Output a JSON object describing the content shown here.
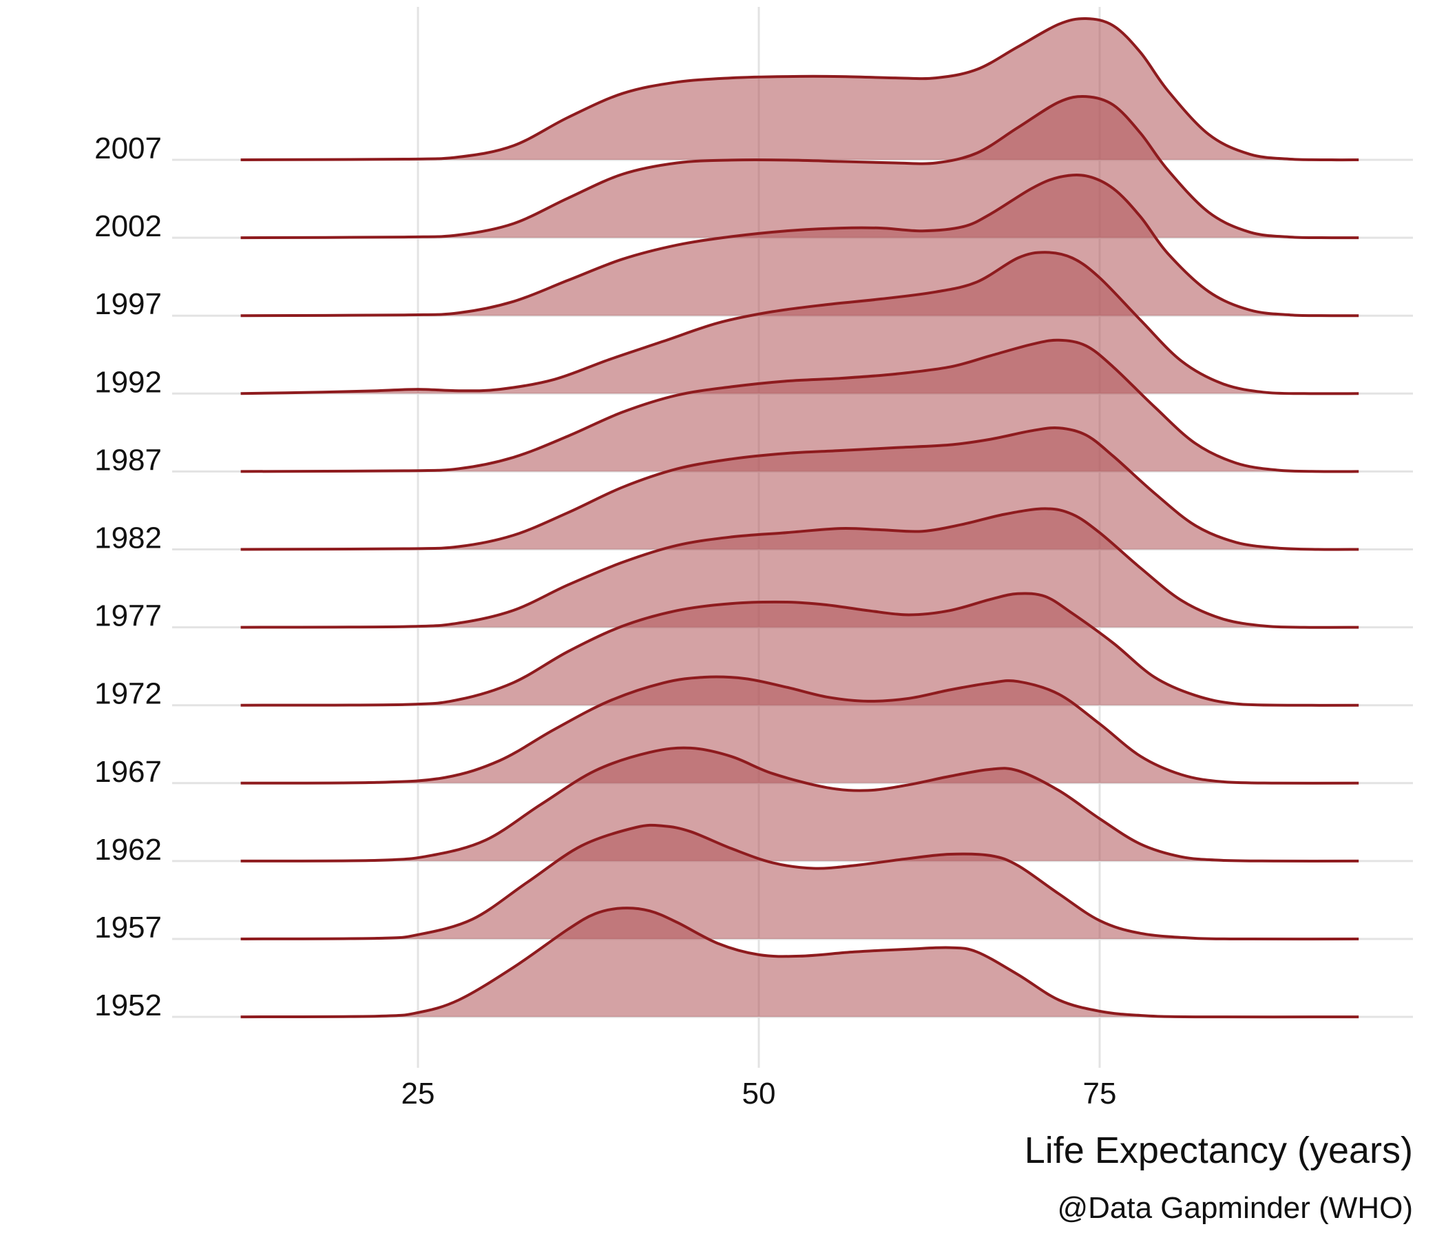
{
  "chart_data": {
    "type": "ridgeline",
    "xlabel": "Life Expectancy (years)",
    "caption": "@Data Gapminder (WHO)",
    "x_ticks": [
      25,
      50,
      75
    ],
    "xlim": [
      12,
      94
    ],
    "grid": true,
    "colors": {
      "fill": "#b15559",
      "line": "#8e1b1e",
      "grid": "#e3e3e3"
    },
    "density_scale": "relative height; 1.0 = tallest ridge",
    "series": [
      {
        "name": "1952",
        "points": [
          [
            12,
            0
          ],
          [
            22,
            0.005
          ],
          [
            25,
            0.03
          ],
          [
            28,
            0.12
          ],
          [
            32,
            0.35
          ],
          [
            36,
            0.62
          ],
          [
            38,
            0.73
          ],
          [
            40,
            0.77
          ],
          [
            42,
            0.75
          ],
          [
            44,
            0.67
          ],
          [
            47,
            0.52
          ],
          [
            50,
            0.44
          ],
          [
            53,
            0.43
          ],
          [
            57,
            0.46
          ],
          [
            61,
            0.48
          ],
          [
            64,
            0.49
          ],
          [
            66,
            0.46
          ],
          [
            69,
            0.3
          ],
          [
            72,
            0.12
          ],
          [
            75,
            0.04
          ],
          [
            78,
            0.01
          ],
          [
            82,
            0
          ],
          [
            94,
            0
          ]
        ]
      },
      {
        "name": "1957",
        "points": [
          [
            12,
            0
          ],
          [
            22,
            0.005
          ],
          [
            25,
            0.03
          ],
          [
            29,
            0.14
          ],
          [
            33,
            0.4
          ],
          [
            37,
            0.66
          ],
          [
            41,
            0.79
          ],
          [
            43,
            0.8
          ],
          [
            45,
            0.76
          ],
          [
            48,
            0.64
          ],
          [
            51,
            0.54
          ],
          [
            54,
            0.5
          ],
          [
            57,
            0.52
          ],
          [
            61,
            0.57
          ],
          [
            64,
            0.6
          ],
          [
            67,
            0.59
          ],
          [
            69,
            0.52
          ],
          [
            72,
            0.32
          ],
          [
            75,
            0.13
          ],
          [
            78,
            0.04
          ],
          [
            82,
            0.005
          ],
          [
            86,
            0
          ],
          [
            94,
            0
          ]
        ]
      },
      {
        "name": "1962",
        "points": [
          [
            12,
            0
          ],
          [
            22,
            0.005
          ],
          [
            26,
            0.04
          ],
          [
            30,
            0.15
          ],
          [
            34,
            0.4
          ],
          [
            38,
            0.64
          ],
          [
            42,
            0.77
          ],
          [
            45,
            0.8
          ],
          [
            48,
            0.74
          ],
          [
            51,
            0.62
          ],
          [
            55,
            0.52
          ],
          [
            58,
            0.5
          ],
          [
            61,
            0.54
          ],
          [
            64,
            0.6
          ],
          [
            67,
            0.65
          ],
          [
            69,
            0.64
          ],
          [
            72,
            0.5
          ],
          [
            75,
            0.3
          ],
          [
            78,
            0.12
          ],
          [
            81,
            0.03
          ],
          [
            84,
            0.005
          ],
          [
            88,
            0
          ],
          [
            94,
            0
          ]
        ]
      },
      {
        "name": "1967",
        "points": [
          [
            12,
            0
          ],
          [
            22,
            0.005
          ],
          [
            27,
            0.04
          ],
          [
            31,
            0.16
          ],
          [
            35,
            0.38
          ],
          [
            39,
            0.58
          ],
          [
            43,
            0.71
          ],
          [
            46,
            0.75
          ],
          [
            49,
            0.74
          ],
          [
            52,
            0.68
          ],
          [
            55,
            0.61
          ],
          [
            58,
            0.58
          ],
          [
            61,
            0.6
          ],
          [
            64,
            0.66
          ],
          [
            67,
            0.71
          ],
          [
            69,
            0.72
          ],
          [
            72,
            0.63
          ],
          [
            75,
            0.42
          ],
          [
            78,
            0.19
          ],
          [
            81,
            0.06
          ],
          [
            84,
            0.01
          ],
          [
            88,
            0
          ],
          [
            94,
            0
          ]
        ]
      },
      {
        "name": "1972",
        "points": [
          [
            12,
            0
          ],
          [
            24,
            0.005
          ],
          [
            28,
            0.04
          ],
          [
            32,
            0.16
          ],
          [
            36,
            0.38
          ],
          [
            40,
            0.56
          ],
          [
            44,
            0.67
          ],
          [
            48,
            0.72
          ],
          [
            52,
            0.73
          ],
          [
            55,
            0.71
          ],
          [
            58,
            0.67
          ],
          [
            61,
            0.64
          ],
          [
            64,
            0.67
          ],
          [
            67,
            0.75
          ],
          [
            69,
            0.79
          ],
          [
            71,
            0.77
          ],
          [
            73,
            0.65
          ],
          [
            76,
            0.44
          ],
          [
            79,
            0.2
          ],
          [
            82,
            0.07
          ],
          [
            85,
            0.01
          ],
          [
            89,
            0
          ],
          [
            94,
            0
          ]
        ]
      },
      {
        "name": "1977",
        "points": [
          [
            12,
            0
          ],
          [
            24,
            0.005
          ],
          [
            28,
            0.03
          ],
          [
            32,
            0.12
          ],
          [
            36,
            0.3
          ],
          [
            40,
            0.46
          ],
          [
            44,
            0.58
          ],
          [
            48,
            0.64
          ],
          [
            52,
            0.67
          ],
          [
            56,
            0.7
          ],
          [
            59,
            0.69
          ],
          [
            62,
            0.68
          ],
          [
            65,
            0.73
          ],
          [
            68,
            0.8
          ],
          [
            71,
            0.84
          ],
          [
            73,
            0.8
          ],
          [
            75,
            0.67
          ],
          [
            78,
            0.42
          ],
          [
            81,
            0.19
          ],
          [
            84,
            0.06
          ],
          [
            87,
            0.01
          ],
          [
            90,
            0
          ],
          [
            94,
            0
          ]
        ]
      },
      {
        "name": "1982",
        "points": [
          [
            12,
            0
          ],
          [
            24,
            0.005
          ],
          [
            28,
            0.02
          ],
          [
            32,
            0.1
          ],
          [
            36,
            0.26
          ],
          [
            40,
            0.44
          ],
          [
            44,
            0.57
          ],
          [
            48,
            0.64
          ],
          [
            52,
            0.68
          ],
          [
            56,
            0.7
          ],
          [
            60,
            0.72
          ],
          [
            64,
            0.74
          ],
          [
            67,
            0.78
          ],
          [
            70,
            0.84
          ],
          [
            72,
            0.86
          ],
          [
            74,
            0.81
          ],
          [
            76,
            0.66
          ],
          [
            79,
            0.4
          ],
          [
            82,
            0.17
          ],
          [
            85,
            0.05
          ],
          [
            88,
            0.01
          ],
          [
            91,
            0
          ],
          [
            94,
            0
          ]
        ]
      },
      {
        "name": "1987",
        "points": [
          [
            12,
            0
          ],
          [
            24,
            0.005
          ],
          [
            28,
            0.02
          ],
          [
            32,
            0.1
          ],
          [
            36,
            0.25
          ],
          [
            40,
            0.42
          ],
          [
            44,
            0.54
          ],
          [
            48,
            0.6
          ],
          [
            52,
            0.64
          ],
          [
            56,
            0.66
          ],
          [
            60,
            0.69
          ],
          [
            64,
            0.74
          ],
          [
            67,
            0.82
          ],
          [
            70,
            0.9
          ],
          [
            72,
            0.93
          ],
          [
            74,
            0.89
          ],
          [
            76,
            0.74
          ],
          [
            79,
            0.46
          ],
          [
            82,
            0.2
          ],
          [
            85,
            0.06
          ],
          [
            88,
            0.01
          ],
          [
            91,
            0
          ],
          [
            94,
            0
          ]
        ]
      },
      {
        "name": "1992",
        "points": [
          [
            12,
            0
          ],
          [
            18,
            0.01
          ],
          [
            22,
            0.02
          ],
          [
            25,
            0.03
          ],
          [
            28,
            0.02
          ],
          [
            31,
            0.03
          ],
          [
            35,
            0.1
          ],
          [
            39,
            0.24
          ],
          [
            43,
            0.37
          ],
          [
            47,
            0.5
          ],
          [
            51,
            0.58
          ],
          [
            55,
            0.63
          ],
          [
            59,
            0.67
          ],
          [
            63,
            0.72
          ],
          [
            66,
            0.79
          ],
          [
            69,
            0.96
          ],
          [
            71,
            1.0
          ],
          [
            73,
            0.96
          ],
          [
            75,
            0.82
          ],
          [
            78,
            0.52
          ],
          [
            81,
            0.23
          ],
          [
            84,
            0.07
          ],
          [
            87,
            0.01
          ],
          [
            90,
            0
          ],
          [
            94,
            0
          ]
        ]
      },
      {
        "name": "1997",
        "points": [
          [
            12,
            0
          ],
          [
            24,
            0.005
          ],
          [
            28,
            0.02
          ],
          [
            32,
            0.1
          ],
          [
            36,
            0.25
          ],
          [
            40,
            0.4
          ],
          [
            44,
            0.5
          ],
          [
            48,
            0.56
          ],
          [
            52,
            0.6
          ],
          [
            56,
            0.62
          ],
          [
            59,
            0.62
          ],
          [
            62,
            0.6
          ],
          [
            65,
            0.63
          ],
          [
            67,
            0.72
          ],
          [
            70,
            0.9
          ],
          [
            72,
            0.98
          ],
          [
            74,
            0.99
          ],
          [
            76,
            0.9
          ],
          [
            78,
            0.7
          ],
          [
            80,
            0.44
          ],
          [
            83,
            0.17
          ],
          [
            86,
            0.04
          ],
          [
            89,
            0.005
          ],
          [
            92,
            0
          ],
          [
            94,
            0
          ]
        ]
      },
      {
        "name": "2002",
        "points": [
          [
            12,
            0
          ],
          [
            24,
            0.005
          ],
          [
            28,
            0.02
          ],
          [
            32,
            0.1
          ],
          [
            36,
            0.28
          ],
          [
            40,
            0.45
          ],
          [
            44,
            0.53
          ],
          [
            48,
            0.55
          ],
          [
            52,
            0.55
          ],
          [
            56,
            0.54
          ],
          [
            60,
            0.53
          ],
          [
            63,
            0.53
          ],
          [
            66,
            0.6
          ],
          [
            69,
            0.78
          ],
          [
            72,
            0.96
          ],
          [
            74,
            1.0
          ],
          [
            76,
            0.94
          ],
          [
            78,
            0.74
          ],
          [
            80,
            0.48
          ],
          [
            83,
            0.18
          ],
          [
            86,
            0.04
          ],
          [
            89,
            0.005
          ],
          [
            92,
            0
          ],
          [
            94,
            0
          ]
        ]
      },
      {
        "name": "2007",
        "points": [
          [
            12,
            0
          ],
          [
            24,
            0.005
          ],
          [
            28,
            0.02
          ],
          [
            32,
            0.1
          ],
          [
            36,
            0.3
          ],
          [
            40,
            0.47
          ],
          [
            44,
            0.55
          ],
          [
            48,
            0.58
          ],
          [
            52,
            0.59
          ],
          [
            56,
            0.59
          ],
          [
            60,
            0.58
          ],
          [
            63,
            0.58
          ],
          [
            66,
            0.64
          ],
          [
            69,
            0.8
          ],
          [
            72,
            0.96
          ],
          [
            74,
            1.0
          ],
          [
            76,
            0.95
          ],
          [
            78,
            0.76
          ],
          [
            80,
            0.49
          ],
          [
            83,
            0.18
          ],
          [
            86,
            0.04
          ],
          [
            89,
            0.005
          ],
          [
            92,
            0
          ],
          [
            94,
            0
          ]
        ]
      }
    ]
  }
}
